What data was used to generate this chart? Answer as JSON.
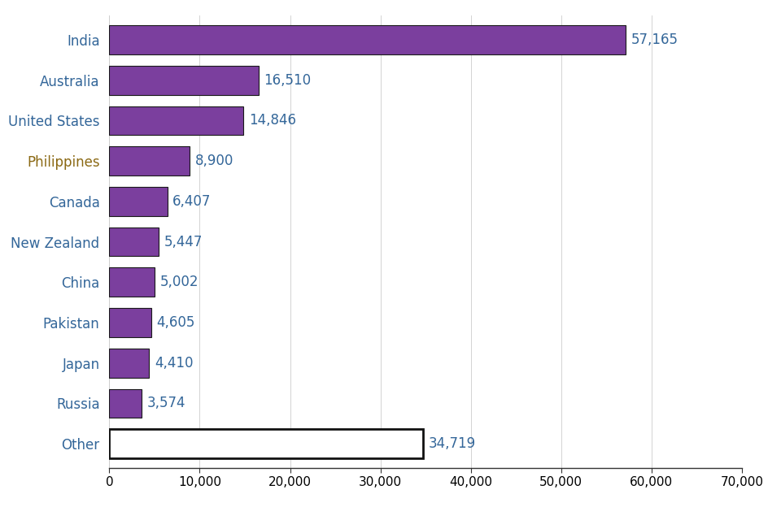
{
  "categories": [
    "India",
    "Australia",
    "United States",
    "Philippines",
    "Canada",
    "New Zealand",
    "China",
    "Pakistan",
    "Japan",
    "Russia",
    "Other"
  ],
  "values": [
    57165,
    16510,
    14846,
    8900,
    6407,
    5447,
    5002,
    4605,
    4410,
    3574,
    34719
  ],
  "labels": [
    "57,165",
    "16,510",
    "14,846",
    "8,900",
    "6,407",
    "5,447",
    "5,002",
    "4,605",
    "4,410",
    "3,574",
    "34,719"
  ],
  "bar_color": "#7B3F9E",
  "bar_edgecolor": "#1a1a1a",
  "other_facecolor": "white",
  "other_edgecolor": "#111111",
  "ytick_colors": {
    "India": "#336699",
    "Australia": "#336699",
    "United States": "#336699",
    "Philippines": "#8B6914",
    "Canada": "#336699",
    "New Zealand": "#336699",
    "China": "#336699",
    "Pakistan": "#336699",
    "Japan": "#336699",
    "Russia": "#336699",
    "Other": "#336699"
  },
  "value_label_color": "#336699",
  "xlim": [
    0,
    70000
  ],
  "xticks": [
    0,
    10000,
    20000,
    30000,
    40000,
    50000,
    60000,
    70000
  ],
  "xtick_labels": [
    "0",
    "10,000",
    "20,000",
    "30,000",
    "40,000",
    "50,000",
    "60,000",
    "70,000"
  ],
  "background_color": "#ffffff",
  "label_fontsize": 12,
  "ytick_fontsize": 12,
  "xtick_fontsize": 11,
  "bar_height": 0.72
}
